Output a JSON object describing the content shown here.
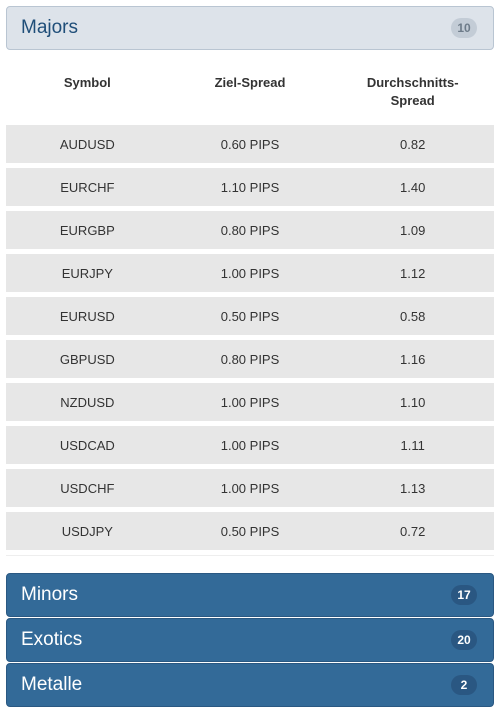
{
  "majors": {
    "title": "Majors",
    "count": "10",
    "headers": [
      "Symbol",
      "Ziel-Spread",
      "Durchschnitts-\nSpread"
    ],
    "rows": [
      {
        "symbol": "AUDUSD",
        "target": "0.60 PIPS",
        "average": "0.82"
      },
      {
        "symbol": "EURCHF",
        "target": "1.10 PIPS",
        "average": "1.40"
      },
      {
        "symbol": "EURGBP",
        "target": "0.80 PIPS",
        "average": "1.09"
      },
      {
        "symbol": "EURJPY",
        "target": "1.00 PIPS",
        "average": "1.12"
      },
      {
        "symbol": "EURUSD",
        "target": "0.50 PIPS",
        "average": "0.58"
      },
      {
        "symbol": "GBPUSD",
        "target": "0.80 PIPS",
        "average": "1.16"
      },
      {
        "symbol": "NZDUSD",
        "target": "1.00 PIPS",
        "average": "1.10"
      },
      {
        "symbol": "USDCAD",
        "target": "1.00 PIPS",
        "average": "1.11"
      },
      {
        "symbol": "USDCHF",
        "target": "1.00 PIPS",
        "average": "1.13"
      },
      {
        "symbol": "USDJPY",
        "target": "0.50 PIPS",
        "average": "0.72"
      }
    ]
  },
  "panels": [
    {
      "title": "Minors",
      "count": "17"
    },
    {
      "title": "Exotics",
      "count": "20"
    },
    {
      "title": "Metalle",
      "count": "2"
    }
  ],
  "colors": {
    "majors_bg": "#dde3ea",
    "majors_title": "#1f4e79",
    "dark_panel_bg": "#336a98",
    "row_bg": "#e7e7e7"
  }
}
